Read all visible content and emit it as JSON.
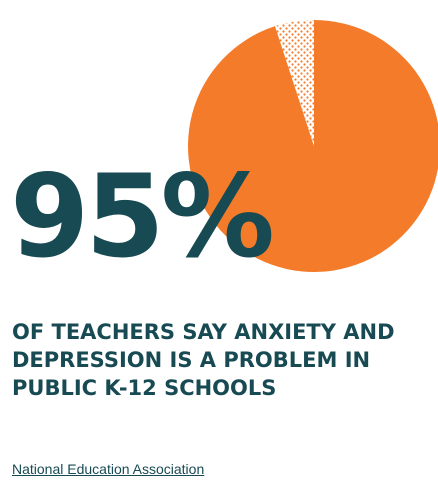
{
  "chart_data": {
    "type": "pie",
    "title": "",
    "slices": [
      {
        "label": "",
        "value": 95,
        "color": "#f47b29",
        "fill": "solid"
      },
      {
        "label": "",
        "value": 5,
        "color": "#f47b29",
        "fill": "dotted"
      }
    ]
  },
  "stat": {
    "value": "95%",
    "caption": "OF TEACHERS SAY ANXIETY AND DEPRESSION IS A PROBLEM IN PUBLIC K-12 SCHOOLS"
  },
  "source": {
    "label": "National Education Association"
  },
  "colors": {
    "accent": "#f47b29",
    "text": "#174a52"
  }
}
